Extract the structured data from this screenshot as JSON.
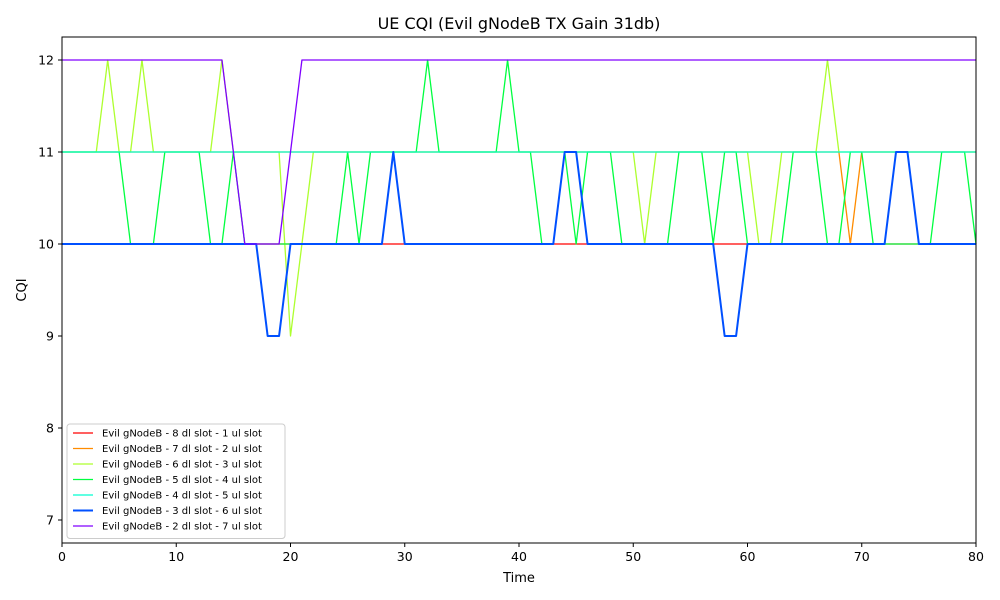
{
  "chart_data": {
    "type": "line",
    "title": "UE CQI (Evil gNodeB TX Gain 31db)",
    "xlabel": "Time",
    "ylabel": "CQI",
    "xlim": [
      0,
      80
    ],
    "ylim": [
      6.75,
      12.25
    ],
    "xticks": [
      0,
      10,
      20,
      30,
      40,
      50,
      60,
      70,
      80
    ],
    "yticks": [
      7,
      8,
      9,
      10,
      11,
      12
    ],
    "grid": false,
    "legend_position": "lower-left",
    "series": [
      {
        "name": "Evil gNodeB - 8 dl slot - 1 ul slot",
        "color": "#ff0000",
        "x": [
          0,
          80
        ],
        "y": [
          10,
          10
        ]
      },
      {
        "name": "Evil gNodeB - 7 dl slot - 2 ul slot",
        "color": "#ff8c00",
        "x": [
          0,
          68,
          69,
          70,
          80
        ],
        "y": [
          11,
          11,
          10,
          11,
          11
        ]
      },
      {
        "name": "Evil gNodeB - 6 dl slot - 3 ul slot",
        "color": "#adff2f",
        "x": [
          0,
          3,
          4,
          5,
          6,
          7,
          8,
          13,
          14,
          15,
          19,
          20,
          21,
          22,
          50,
          51,
          52,
          60,
          61,
          62,
          63,
          66,
          67,
          68,
          80
        ],
        "y": [
          11,
          11,
          12,
          11,
          11,
          12,
          11,
          11,
          12,
          11,
          11,
          9,
          10,
          11,
          11,
          10,
          11,
          11,
          10,
          10,
          11,
          11,
          12,
          11,
          11
        ]
      },
      {
        "name": "Evil gNodeB - 5 dl slot - 4 ul slot",
        "color": "#00ff40",
        "x": [
          0,
          4,
          5,
          6,
          8,
          9,
          12,
          13,
          14,
          15,
          16,
          18,
          19,
          20,
          24,
          25,
          26,
          27,
          31,
          32,
          33,
          38,
          39,
          40,
          41,
          42,
          43,
          44,
          45,
          46,
          48,
          49,
          53,
          54,
          56,
          57,
          58,
          59,
          60,
          63,
          64,
          66,
          67,
          68,
          69,
          70,
          71,
          76,
          77,
          79,
          80
        ],
        "y": [
          11,
          11,
          11,
          10,
          10,
          11,
          11,
          10,
          10,
          11,
          10,
          10,
          10,
          10,
          10,
          11,
          10,
          11,
          11,
          12,
          11,
          11,
          12,
          11,
          11,
          10,
          10,
          11,
          10,
          11,
          11,
          10,
          10,
          11,
          11,
          10,
          11,
          11,
          10,
          10,
          11,
          11,
          10,
          10,
          11,
          11,
          10,
          10,
          11,
          11,
          10
        ]
      },
      {
        "name": "Evil gNodeB - 4 dl slot - 5 ul slot",
        "color": "#00ffd0",
        "x": [
          0,
          80
        ],
        "y": [
          11,
          11
        ]
      },
      {
        "name": "Evil gNodeB - 3 dl slot - 6 ul slot",
        "color": "#0050ff",
        "x": [
          0,
          17,
          18,
          19,
          20,
          28,
          29,
          30,
          43,
          44,
          45,
          46,
          57,
          58,
          59,
          60,
          72,
          73,
          74,
          75,
          80
        ],
        "y": [
          10,
          10,
          9,
          9,
          10,
          10,
          11,
          10,
          10,
          11,
          11,
          10,
          10,
          9,
          9,
          10,
          10,
          11,
          11,
          10,
          10
        ]
      },
      {
        "name": "Evil gNodeB - 2 dl slot - 7 ul slot",
        "color": "#8000ff",
        "x": [
          0,
          14,
          15,
          16,
          19,
          21,
          80
        ],
        "y": [
          12,
          12,
          11,
          10,
          10,
          12,
          12
        ]
      }
    ]
  }
}
